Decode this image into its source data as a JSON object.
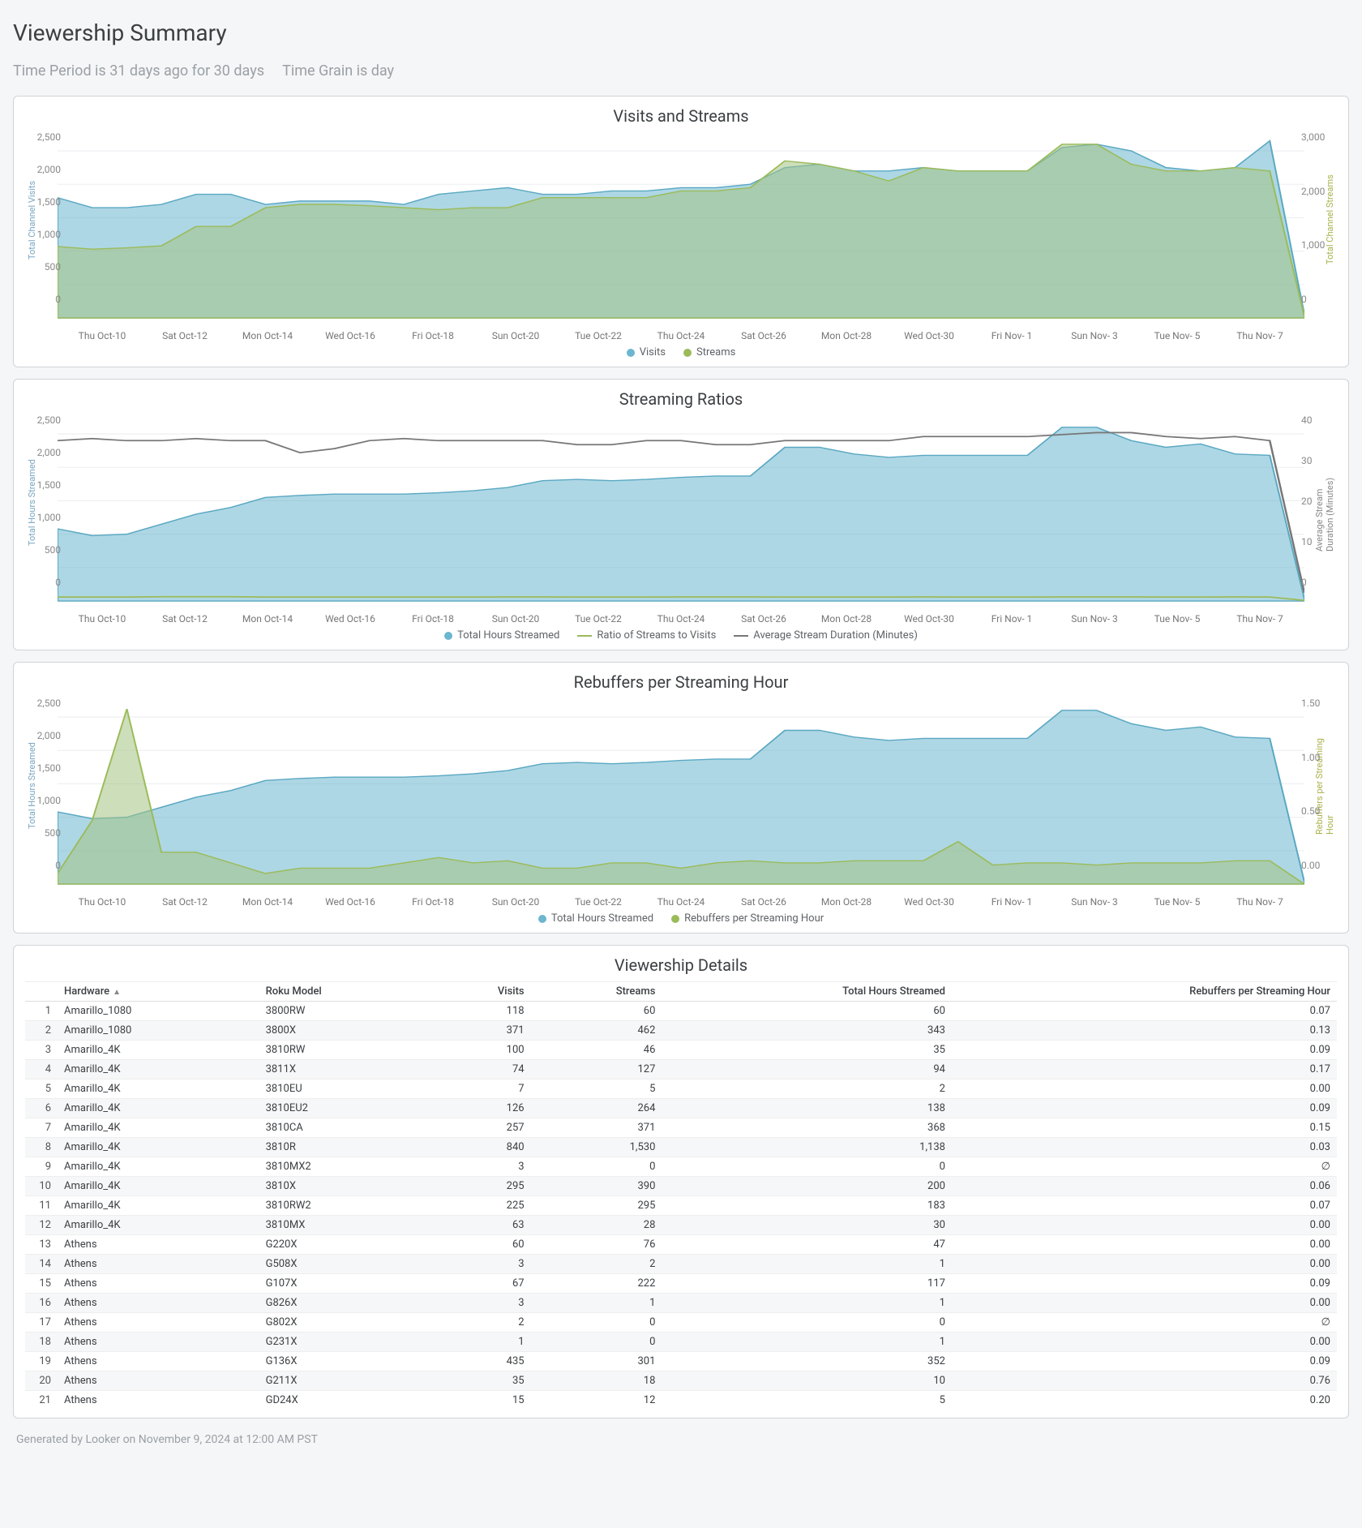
{
  "page_title": "Viewership Summary",
  "subtitle_time_period": "Time Period is 31 days ago for 30 days",
  "subtitle_time_grain": "Time Grain is day",
  "footer": "Generated by Looker on November 9, 2024 at 12:00 AM PST",
  "colors": {
    "visits_fill": "rgba(108,182,208,0.55)",
    "visits_stroke": "#5aa8c2",
    "streams_fill": "rgba(164,194,132,0.55)",
    "streams_stroke": "#9bbb59",
    "gray_line": "#777777",
    "grid": "#eceef0",
    "axis_text": "#888888"
  },
  "x_labels": [
    "Thu Oct-10",
    "Sat Oct-12",
    "Mon Oct-14",
    "Wed Oct-16",
    "Fri Oct-18",
    "Sun Oct-20",
    "Tue Oct-22",
    "Thu Oct-24",
    "Sat Oct-26",
    "Mon Oct-28",
    "Wed Oct-30",
    "Fri Nov- 1",
    "Sun Nov- 3",
    "Tue Nov- 5",
    "Thu Nov- 7"
  ],
  "chart_font_size": 12,
  "chart1": {
    "title": "Visits and Streams",
    "y_left_label": "Total Channel Visits",
    "y_right_label": "Total Channel Streams",
    "y_left": {
      "min": 0,
      "max": 2700,
      "ticks": [
        2500,
        2000,
        1500,
        1000,
        500,
        0
      ]
    },
    "y_right": {
      "min": 0,
      "max": 3500,
      "ticks": [
        3000,
        2000,
        1000,
        0
      ]
    },
    "legend": [
      {
        "label": "Visits",
        "color": "#6cb6d0",
        "type": "dot"
      },
      {
        "label": "Streams",
        "color": "#9bbb59",
        "type": "dot"
      }
    ],
    "visits": [
      1800,
      1650,
      1650,
      1700,
      1850,
      1850,
      1700,
      1750,
      1750,
      1750,
      1700,
      1850,
      1900,
      1950,
      1850,
      1850,
      1900,
      1900,
      1950,
      1950,
      2000,
      2250,
      2300,
      2200,
      2200,
      2250,
      2200,
      2200,
      2200,
      2550,
      2600,
      2500,
      2250,
      2200,
      2250,
      2650,
      50
    ],
    "streams_on_left_scale": [
      1070,
      1030,
      1050,
      1080,
      1370,
      1370,
      1650,
      1700,
      1700,
      1680,
      1650,
      1620,
      1650,
      1650,
      1800,
      1800,
      1800,
      1800,
      1900,
      1900,
      1950,
      2350,
      2300,
      2200,
      2050,
      2250,
      2200,
      2200,
      2200,
      2600,
      2600,
      2300,
      2200,
      2200,
      2250,
      2200,
      20
    ]
  },
  "chart2": {
    "title": "Streaming Ratios",
    "y_left_label": "Total Hours Streamed",
    "y_right_label": "Average Stream Duration (Minutes)",
    "y_left": {
      "min": 0,
      "max": 2700,
      "ticks": [
        2500,
        2000,
        1500,
        1000,
        500,
        0
      ]
    },
    "y_right": {
      "min": 0,
      "max": 45,
      "ticks": [
        40,
        30,
        20,
        10,
        0
      ]
    },
    "legend": [
      {
        "label": "Total Hours Streamed",
        "color": "#6cb6d0",
        "type": "dot"
      },
      {
        "label": "Ratio of Streams to Visits",
        "color": "#9bbb59",
        "type": "line"
      },
      {
        "label": "Average Stream Duration (Minutes)",
        "color": "#777777",
        "type": "line"
      }
    ],
    "hours": [
      1080,
      980,
      1000,
      1150,
      1300,
      1400,
      1550,
      1580,
      1600,
      1600,
      1600,
      1620,
      1650,
      1700,
      1800,
      1820,
      1800,
      1820,
      1850,
      1870,
      1870,
      2300,
      2300,
      2200,
      2150,
      2180,
      2180,
      2180,
      2180,
      2600,
      2600,
      2400,
      2300,
      2350,
      2200,
      2180,
      30
    ],
    "ratio_on_left_scale": [
      60,
      60,
      60,
      65,
      65,
      65,
      60,
      60,
      60,
      60,
      60,
      60,
      60,
      62,
      62,
      60,
      60,
      60,
      62,
      62,
      62,
      60,
      60,
      60,
      60,
      62,
      60,
      60,
      60,
      62,
      62,
      62,
      60,
      60,
      62,
      60,
      10
    ],
    "avg_dur_on_right_scale": [
      40,
      40.5,
      40,
      40,
      40.5,
      40,
      40,
      37,
      38,
      40,
      40.5,
      40,
      40,
      40,
      40,
      39,
      39,
      40,
      40,
      39,
      39,
      40,
      40,
      40,
      40,
      41,
      41,
      41,
      41,
      41.5,
      42,
      42,
      41,
      40.5,
      41,
      40,
      2
    ]
  },
  "chart3": {
    "title": "Rebuffers per Streaming Hour",
    "y_left_label": "Total Hours Streamed",
    "y_right_label": "Rebuffers per Streaming Hour",
    "y_left": {
      "min": 0,
      "max": 2700,
      "ticks": [
        2500,
        2000,
        1500,
        1000,
        500,
        0
      ]
    },
    "y_right": {
      "min": 0.0,
      "max": 1.7,
      "ticks": [
        "1.50",
        "1.00",
        "0.50",
        "0.00"
      ]
    },
    "legend": [
      {
        "label": "Total Hours Streamed",
        "color": "#6cb6d0",
        "type": "dot"
      },
      {
        "label": "Rebuffers per Streaming Hour",
        "color": "#9bbb59",
        "type": "dot"
      }
    ],
    "hours": [
      1080,
      980,
      1000,
      1150,
      1300,
      1400,
      1550,
      1580,
      1600,
      1600,
      1600,
      1620,
      1650,
      1700,
      1800,
      1820,
      1800,
      1820,
      1850,
      1870,
      1870,
      2300,
      2300,
      2200,
      2150,
      2180,
      2180,
      2180,
      2180,
      2600,
      2600,
      2400,
      2300,
      2350,
      2200,
      2180,
      30
    ],
    "rebuffers_on_right_scale": [
      0.1,
      0.6,
      1.65,
      0.3,
      0.3,
      0.2,
      0.1,
      0.15,
      0.15,
      0.15,
      0.2,
      0.25,
      0.2,
      0.22,
      0.15,
      0.15,
      0.2,
      0.2,
      0.15,
      0.2,
      0.22,
      0.2,
      0.2,
      0.22,
      0.22,
      0.22,
      0.4,
      0.18,
      0.2,
      0.2,
      0.18,
      0.2,
      0.2,
      0.2,
      0.22,
      0.22,
      0.0
    ]
  },
  "table": {
    "title": "Viewership Details",
    "columns": [
      "#",
      "Hardware",
      "Roku Model",
      "Visits",
      "Streams",
      "Total Hours Streamed",
      "Rebuffers per Streaming Hour"
    ],
    "col_types": [
      "idx",
      "text",
      "text",
      "num",
      "num",
      "num",
      "num"
    ],
    "sort_col": 1,
    "sort_dir": "asc",
    "rows": [
      [
        1,
        "Amarillo_1080",
        "3800RW",
        "118",
        "60",
        "60",
        "0.07"
      ],
      [
        2,
        "Amarillo_1080",
        "3800X",
        "371",
        "462",
        "343",
        "0.13"
      ],
      [
        3,
        "Amarillo_4K",
        "3810RW",
        "100",
        "46",
        "35",
        "0.09"
      ],
      [
        4,
        "Amarillo_4K",
        "3811X",
        "74",
        "127",
        "94",
        "0.17"
      ],
      [
        5,
        "Amarillo_4K",
        "3810EU",
        "7",
        "5",
        "2",
        "0.00"
      ],
      [
        6,
        "Amarillo_4K",
        "3810EU2",
        "126",
        "264",
        "138",
        "0.09"
      ],
      [
        7,
        "Amarillo_4K",
        "3810CA",
        "257",
        "371",
        "368",
        "0.15"
      ],
      [
        8,
        "Amarillo_4K",
        "3810R",
        "840",
        "1,530",
        "1,138",
        "0.03"
      ],
      [
        9,
        "Amarillo_4K",
        "3810MX2",
        "3",
        "0",
        "0",
        "∅"
      ],
      [
        10,
        "Amarillo_4K",
        "3810X",
        "295",
        "390",
        "200",
        "0.06"
      ],
      [
        11,
        "Amarillo_4K",
        "3810RW2",
        "225",
        "295",
        "183",
        "0.07"
      ],
      [
        12,
        "Amarillo_4K",
        "3810MX",
        "63",
        "28",
        "30",
        "0.00"
      ],
      [
        13,
        "Athens",
        "G220X",
        "60",
        "76",
        "47",
        "0.00"
      ],
      [
        14,
        "Athens",
        "G508X",
        "3",
        "2",
        "1",
        "0.00"
      ],
      [
        15,
        "Athens",
        "G107X",
        "67",
        "222",
        "117",
        "0.09"
      ],
      [
        16,
        "Athens",
        "G826X",
        "3",
        "1",
        "1",
        "0.00"
      ],
      [
        17,
        "Athens",
        "G802X",
        "2",
        "0",
        "0",
        "∅"
      ],
      [
        18,
        "Athens",
        "G231X",
        "1",
        "0",
        "1",
        "0.00"
      ],
      [
        19,
        "Athens",
        "G136X",
        "435",
        "301",
        "352",
        "0.09"
      ],
      [
        20,
        "Athens",
        "G211X",
        "35",
        "18",
        "10",
        "0.76"
      ],
      [
        21,
        "Athens",
        "GD24X",
        "15",
        "12",
        "5",
        "0.20"
      ]
    ]
  }
}
